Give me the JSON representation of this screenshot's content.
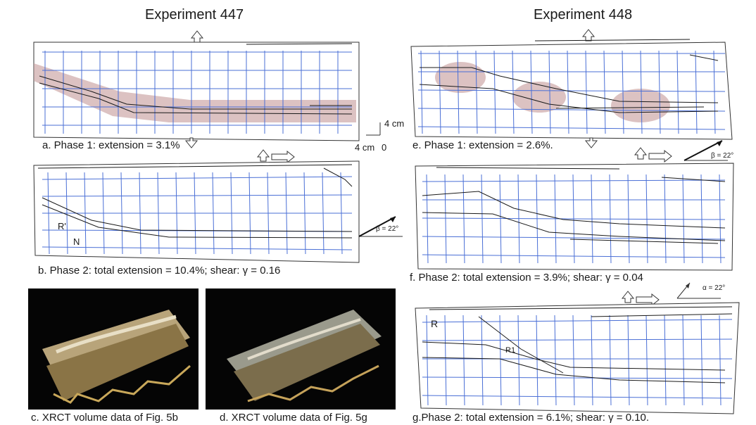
{
  "exp447": {
    "title": "Experiment 447"
  },
  "exp448": {
    "title": "Experiment 448"
  },
  "captions": {
    "a": "a. Phase 1: extension = 3.1%",
    "b": "b. Phase 2: total extension = 10.4%; shear: γ = 0.16",
    "c": "c. XRCT volume data of Fig. 5b",
    "d": "d.  XRCT volume data of Fig. 5g",
    "e": "e. Phase 1: extension = 2.6%.",
    "f": "f. Phase 2: total extension = 3.9%; shear: γ = 0.04",
    "g": "g.Phase 2: total extension = 6.1%; shear: γ = 0.10."
  },
  "scale": {
    "vertical": "4 cm",
    "horizontal": "4 cm",
    "origin": "0"
  },
  "angles": {
    "b": "β = 22°",
    "e": "β = 22°",
    "g": "α = 22°"
  },
  "labels": {
    "R_prime": "R'",
    "N": "N",
    "R": "R",
    "R1": "R1"
  },
  "colors": {
    "grid": "#4a6fd6",
    "zone": "#c49a9a",
    "fault": "#1a1a1a"
  }
}
